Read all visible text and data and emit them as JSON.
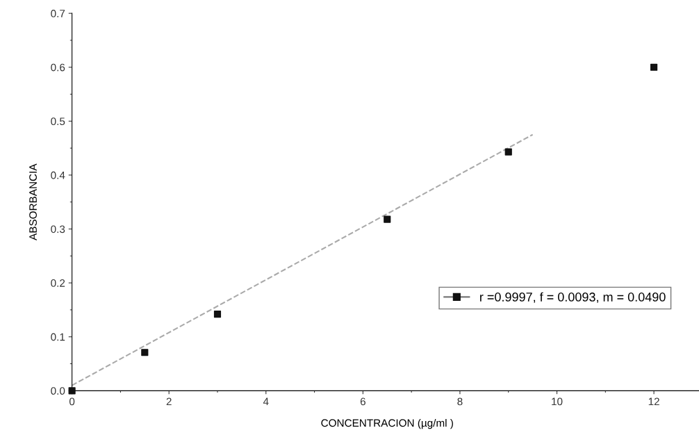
{
  "chart_data": {
    "type": "scatter",
    "xlabel": "CONCENTRACION (µg/ml )",
    "ylabel": "ABSORBANCIA",
    "xlim": [
      0,
      13
    ],
    "xticks": [
      0,
      2,
      4,
      6,
      8,
      10,
      12
    ],
    "ylim": [
      0,
      0.7
    ],
    "yticks": [
      {
        "value": 0,
        "label": "0.0"
      },
      0.1,
      0.2,
      0.3,
      0.4,
      0.5,
      0.6,
      0.7
    ],
    "series": [
      {
        "name": "r =0.9997, f = 0.0093, m = 0.0490",
        "color": "#111111",
        "marker": "square",
        "x": [
          0,
          1.5,
          3,
          6.5,
          9,
          12
        ],
        "values": [
          0,
          0.071,
          0.142,
          0.318,
          0.443,
          0.6
        ]
      },
      {
        "type": "line",
        "color": "#aaaaaa",
        "line_style": "dashed",
        "marker": "none",
        "x": [
          0,
          9.5
        ],
        "values": [
          0.01,
          0.475
        ]
      }
    ],
    "legend": "bottom right",
    "grid": false
  }
}
